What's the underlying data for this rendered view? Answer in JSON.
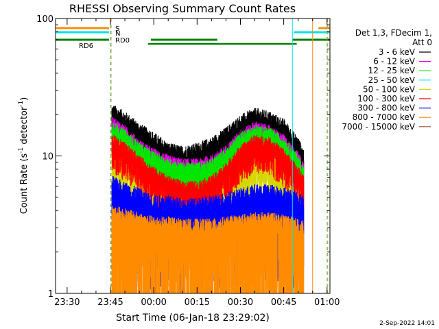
{
  "chart_data": {
    "type": "line",
    "title": "RHESSI Observing Summary Count Rates",
    "xlabel": "Start Time (06-Jan-18 23:29:02)",
    "ylabel_main": "Count Rate (s",
    "ylabel_sup1": "-1",
    "ylabel_mid": " detector",
    "ylabel_sup2": "-1",
    "ylabel_end": ")",
    "yscale": "log",
    "ylim": [
      1,
      100
    ],
    "xlim_minutes": [
      -34,
      61
    ],
    "y_ticks": [
      {
        "value": 1,
        "label": "1"
      },
      {
        "value": 10,
        "label": "10"
      },
      {
        "value": 100,
        "label": "100"
      }
    ],
    "x_ticks": [
      {
        "minutes": -30,
        "label": "23:30"
      },
      {
        "minutes": -15,
        "label": "23:45"
      },
      {
        "minutes": 0,
        "label": "00:00"
      },
      {
        "minutes": 15,
        "label": "00:15"
      },
      {
        "minutes": 30,
        "label": "00:30"
      },
      {
        "minutes": 45,
        "label": "00:45"
      },
      {
        "minutes": 60,
        "label": "01:00"
      }
    ],
    "legend": {
      "header1": "Det 1,3, FDecim 1,",
      "header2": "Att 0",
      "entries": [
        {
          "label": "3 - 6 keV",
          "color": "#000000"
        },
        {
          "label": "6 - 12 keV",
          "color": "#e600e6"
        },
        {
          "label": "12 - 25 keV",
          "color": "#00e600"
        },
        {
          "label": "25 - 50 keV",
          "color": "#00e6e6"
        },
        {
          "label": "50 - 100 keV",
          "color": "#d6d600"
        },
        {
          "label": "100 - 300 keV",
          "color": "#ff0000"
        },
        {
          "label": "300 - 800 keV",
          "color": "#0000ff"
        },
        {
          "label": "800 - 7000 keV",
          "color": "#ff8c00"
        },
        {
          "label": "7000 - 15000 keV",
          "color": "#a0522d"
        }
      ]
    },
    "flag_labels": {
      "saa": "S",
      "night": "N",
      "rd0": "RD0",
      "rd6": "RD6"
    },
    "flags": {
      "saa": {
        "color": "#ff8c00",
        "intervals": [
          [
            -34,
            -15.5
          ],
          [
            57,
            61
          ]
        ]
      },
      "night": {
        "color": "#00e6e6",
        "intervals": [
          [
            -34,
            -15.5
          ],
          [
            48.5,
            61
          ]
        ]
      },
      "rd0": {
        "color": "#008000",
        "intervals": [
          [
            -34,
            -15.5
          ],
          [
            -1,
            22
          ],
          [
            48,
            61
          ]
        ]
      },
      "rd6": {
        "color": "#008000",
        "intervals": [
          [
            -2,
            27.5
          ],
          [
            27.5,
            49.5
          ]
        ]
      }
    },
    "vertical_markers": [
      {
        "minutes": -34,
        "color": "#00e6e6",
        "style": "solid"
      },
      {
        "minutes": -15,
        "color": "#00e6e6",
        "style": "dashed"
      },
      {
        "minutes": -15,
        "color": "#ff8c00",
        "style": "dashed"
      },
      {
        "minutes": 48,
        "color": "#00e6e6",
        "style": "solid"
      },
      {
        "minutes": 55,
        "color": "#ff8c00",
        "style": "solid"
      },
      {
        "minutes": 60,
        "color": "#00e6e6",
        "style": "dashed"
      },
      {
        "minutes": 60,
        "color": "#ff8c00",
        "style": "dashed"
      }
    ],
    "data_window_minutes": [
      -14.5,
      52
    ],
    "series": [
      {
        "name": "3 - 6 keV",
        "color": "#000000",
        "profile_minutes": [
          -14,
          -10,
          -5,
          0,
          5,
          10,
          15,
          20,
          25,
          30,
          35,
          40,
          45,
          50,
          52
        ],
        "profile_values": [
          19,
          17,
          14,
          12,
          10,
          9.5,
          10,
          11,
          13,
          16,
          18,
          17,
          15,
          11,
          9
        ],
        "noise_low": 0.55,
        "noise_high": 0.25
      },
      {
        "name": "6 - 12 keV",
        "color": "#e600e6",
        "profile_minutes": [
          -14,
          -10,
          -5,
          0,
          5,
          10,
          15,
          20,
          25,
          30,
          35,
          40,
          45,
          50,
          52
        ],
        "profile_values": [
          16,
          14,
          11,
          9.5,
          8.5,
          8,
          8,
          8.5,
          10,
          13,
          15,
          14,
          12,
          9,
          7.5
        ],
        "noise_low": 0.4,
        "noise_high": 0.2
      },
      {
        "name": "12 - 25 keV",
        "color": "#00e600",
        "profile_minutes": [
          -14,
          -10,
          -5,
          0,
          5,
          10,
          15,
          20,
          25,
          30,
          35,
          40,
          45,
          50,
          52
        ],
        "profile_values": [
          15,
          13,
          10.5,
          9,
          8,
          7.5,
          7.5,
          8,
          9.5,
          12.5,
          14,
          13.5,
          11.5,
          8.5,
          7
        ],
        "noise_low": 0.35,
        "noise_high": 0.2
      },
      {
        "name": "50 - 100 keV",
        "color": "#d6d600",
        "profile_minutes": [
          -14,
          -10,
          -5,
          0,
          5,
          10,
          15,
          20,
          25,
          30,
          35,
          40,
          45,
          50,
          52
        ],
        "profile_values": [
          11,
          9.5,
          7.5,
          6,
          5,
          4.5,
          4.5,
          5,
          6,
          8,
          9.5,
          9,
          7.5,
          5.5,
          4.5
        ],
        "noise_low": 0.5,
        "noise_high": 0.25
      },
      {
        "name": "100 - 300 keV",
        "color": "#ff0000",
        "profile_minutes": [
          -14,
          -10,
          -5,
          0,
          5,
          10,
          15,
          20,
          25,
          30,
          35,
          40,
          45,
          50,
          52
        ],
        "profile_values": [
          12,
          10.5,
          8.5,
          7,
          6,
          5.5,
          5.5,
          6,
          7.5,
          10,
          12,
          11.5,
          9.5,
          7,
          6
        ],
        "noise_low": 0.3,
        "noise_high": 0.2
      },
      {
        "name": "300 - 800 keV",
        "color": "#0000ff",
        "profile_minutes": [
          -14,
          -10,
          -5,
          0,
          5,
          10,
          15,
          20,
          25,
          30,
          35,
          40,
          45,
          50,
          52
        ],
        "profile_values": [
          5.5,
          5,
          4.5,
          4,
          4,
          3.8,
          3.8,
          4,
          4.2,
          4.5,
          4.8,
          4.8,
          4.6,
          4.2,
          4
        ],
        "noise_low": 0.9,
        "noise_high": 0.3
      },
      {
        "name": "800 - 7000 keV",
        "color": "#ff8c00",
        "profile_minutes": [
          -14,
          -10,
          -5,
          0,
          5,
          10,
          15,
          20,
          25,
          30,
          35,
          40,
          45,
          50,
          52
        ],
        "profile_values": [
          3.4,
          3.2,
          3,
          2.8,
          2.8,
          2.7,
          2.7,
          2.7,
          2.8,
          2.9,
          3,
          3,
          2.9,
          2.7,
          2.6
        ],
        "noise_low": 1.5,
        "noise_high": 0.3
      }
    ]
  },
  "footer": {
    "date_stamp": "2-Sep-2022 14:01"
  }
}
